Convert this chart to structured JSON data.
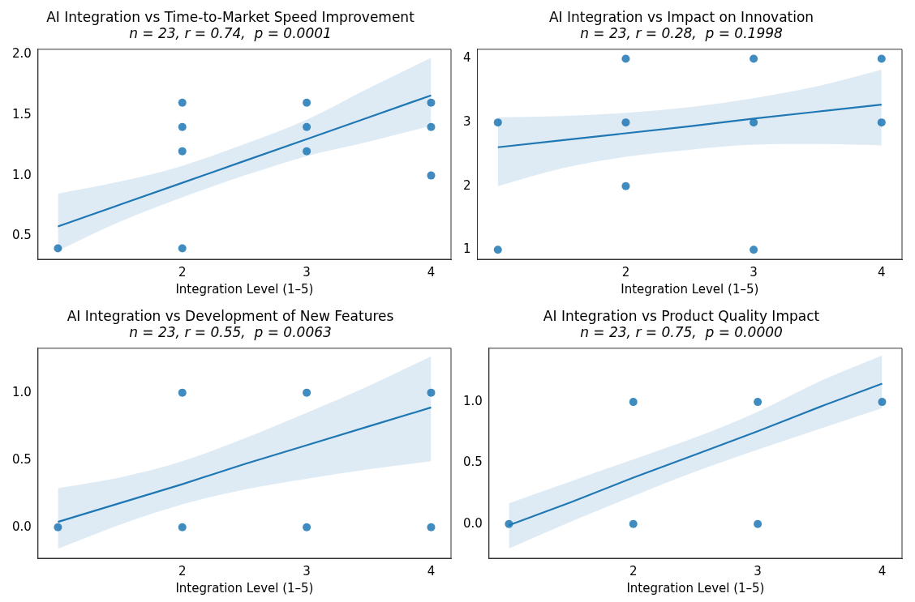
{
  "chart_data": [
    {
      "type": "scatter",
      "title": "AI Integration vs Time-to-Market Speed Improvement",
      "subtitle": "n = 23, r = 0.74,  p = 0.0001",
      "xlabel": "Integration Level (1–5)",
      "xlim": [
        0.84,
        4.16
      ],
      "xticks": [
        2,
        3,
        4
      ],
      "ylim": [
        0.31,
        2.04
      ],
      "yticks": [
        0.5,
        {
          "value": 1,
          "label": "1.0"
        },
        1.5,
        {
          "value": 2,
          "label": "2.0"
        }
      ],
      "grid": false,
      "legend": false,
      "series": [
        {
          "marker": "circle",
          "color": "#1f77b4",
          "x": [
            1,
            2,
            2,
            2,
            2,
            3,
            3,
            3,
            4,
            4,
            4
          ],
          "values": [
            0.4,
            1.6,
            1.4,
            1.2,
            0.4,
            1.6,
            1.4,
            1.2,
            1.6,
            1.4,
            1.0
          ]
        },
        {
          "type": "line",
          "color": "#1f77b4",
          "x": [
            1,
            1.5,
            2,
            2.5,
            3,
            3.5,
            4
          ],
          "values": [
            0.58,
            0.76,
            0.94,
            1.12,
            1.3,
            1.48,
            1.66
          ],
          "lower": [
            0.38,
            0.62,
            0.82,
            1.0,
            1.16,
            1.28,
            1.41
          ],
          "upper": [
            0.85,
            0.95,
            1.08,
            1.26,
            1.46,
            1.72,
            1.97
          ]
        }
      ]
    },
    {
      "type": "scatter",
      "title": "AI Integration vs Impact on Innovation",
      "subtitle": "n = 23, r = 0.28,  p = 0.1998",
      "xlabel": "Integration Level (1–5)",
      "xlim": [
        0.84,
        4.16
      ],
      "xticks": [
        2,
        3,
        4
      ],
      "ylim": [
        0.85,
        4.15
      ],
      "yticks": [
        1,
        2,
        3,
        4
      ],
      "grid": false,
      "legend": false,
      "series": [
        {
          "marker": "circle",
          "color": "#1f77b4",
          "x": [
            1,
            1,
            2,
            2,
            2,
            3,
            3,
            3,
            4,
            4
          ],
          "values": [
            3,
            1,
            4,
            3,
            2,
            4,
            3,
            1,
            4,
            3
          ]
        },
        {
          "type": "line",
          "color": "#1f77b4",
          "x": [
            1,
            1.5,
            2,
            2.5,
            3,
            3.5,
            4
          ],
          "values": [
            2.61,
            2.72,
            2.83,
            2.94,
            3.06,
            3.17,
            3.28
          ],
          "lower": [
            2.0,
            2.28,
            2.46,
            2.57,
            2.65,
            2.66,
            2.64
          ],
          "upper": [
            3.08,
            3.1,
            3.15,
            3.24,
            3.38,
            3.57,
            3.83
          ]
        }
      ]
    },
    {
      "type": "scatter",
      "title": "AI Integration vs Development of New Features",
      "subtitle": "n = 23, r = 0.55,  p = 0.0063",
      "xlabel": "Integration Level (1–5)",
      "xlim": [
        0.84,
        4.16
      ],
      "xticks": [
        2,
        3,
        4
      ],
      "ylim": [
        -0.23,
        1.33
      ],
      "yticks": [
        {
          "value": 0,
          "label": "0.0"
        },
        0.5,
        {
          "value": 1,
          "label": "1.0"
        }
      ],
      "grid": false,
      "legend": false,
      "series": [
        {
          "marker": "circle",
          "color": "#1f77b4",
          "x": [
            1,
            2,
            2,
            3,
            3,
            4,
            4
          ],
          "values": [
            0,
            1,
            0,
            1,
            0,
            1,
            0
          ]
        },
        {
          "type": "line",
          "color": "#1f77b4",
          "x": [
            1,
            1.5,
            2,
            2.5,
            3,
            3.5,
            4
          ],
          "values": [
            0.04,
            0.18,
            0.32,
            0.47,
            0.61,
            0.75,
            0.89
          ],
          "lower": [
            -0.16,
            0.02,
            0.17,
            0.28,
            0.36,
            0.43,
            0.49
          ],
          "upper": [
            0.29,
            0.37,
            0.49,
            0.66,
            0.85,
            1.05,
            1.27
          ]
        }
      ]
    },
    {
      "type": "scatter",
      "title": "AI Integration vs Product Quality Impact",
      "subtitle": "n = 23, r = 0.75,  p = 0.0000",
      "xlabel": "Integration Level (1–5)",
      "xlim": [
        0.84,
        4.16
      ],
      "xticks": [
        2,
        3,
        4
      ],
      "ylim": [
        -0.28,
        1.44
      ],
      "yticks": [
        {
          "value": 0,
          "label": "0.0"
        },
        0.5,
        {
          "value": 1,
          "label": "1.0"
        }
      ],
      "grid": false,
      "legend": false,
      "series": [
        {
          "marker": "circle",
          "color": "#1f77b4",
          "x": [
            1,
            2,
            2,
            3,
            3,
            4
          ],
          "values": [
            0,
            1,
            0,
            1,
            0,
            1
          ]
        },
        {
          "type": "line",
          "color": "#1f77b4",
          "x": [
            1,
            1.5,
            2,
            2.5,
            3,
            3.5,
            4
          ],
          "values": [
            -0.01,
            0.18,
            0.38,
            0.57,
            0.76,
            0.96,
            1.15
          ],
          "lower": [
            -0.2,
            0.02,
            0.23,
            0.43,
            0.61,
            0.78,
            0.95
          ],
          "upper": [
            0.17,
            0.35,
            0.53,
            0.71,
            0.92,
            1.17,
            1.38
          ]
        }
      ]
    }
  ]
}
